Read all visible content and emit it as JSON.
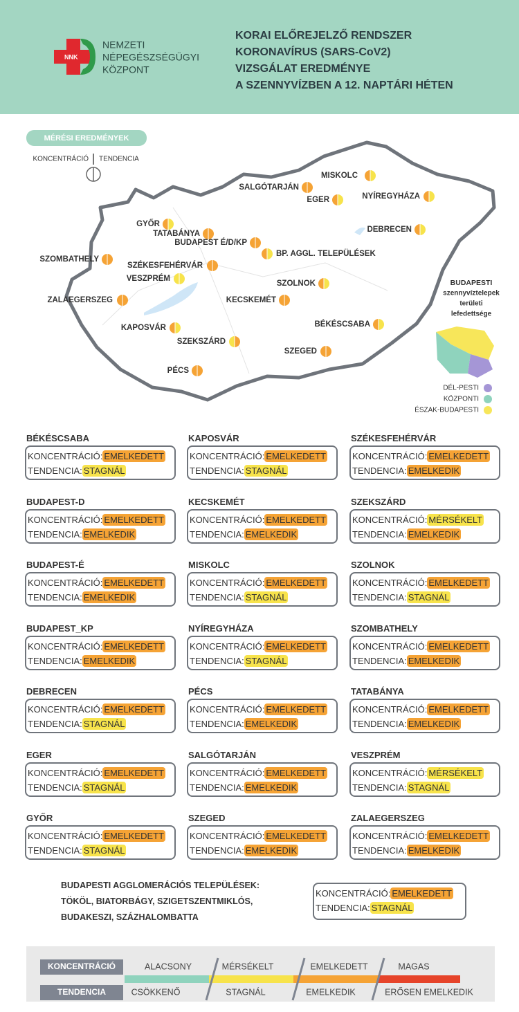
{
  "header": {
    "logo_text": "NNK",
    "org": [
      "NEMZETI",
      "NÉPEGÉSZSÉGÜGYI",
      "KÖZPONT"
    ],
    "title": [
      "KORAI ELŐREJELZŐ RENDSZER",
      "KORONAVÍRUS (SARS-CoV2)",
      "VIZSGÁLAT EREDMÉNYE",
      "A SZENNYVÍZBEN A 12. NAPTÁRI HÉTEN"
    ]
  },
  "map": {
    "badge": "MÉRÉSI EREDMÉNYEK",
    "key_left": "KONCENTRÁCIÓ",
    "key_right": "TENDENCIA",
    "cities": [
      {
        "label": "MISKOLC",
        "concentration_color": "#f5a335",
        "tendency_color": "#f7e34b"
      },
      {
        "label": "SALGÓTARJÁN",
        "concentration_color": "#f5a335",
        "tendency_color": "#f5a335"
      },
      {
        "label": "EGER",
        "concentration_color": "#f5a335",
        "tendency_color": "#f7e34b"
      },
      {
        "label": "NYÍREGYHÁZA",
        "concentration_color": "#f5a335",
        "tendency_color": "#f7e34b"
      },
      {
        "label": "GYŐR",
        "concentration_color": "#f5a335",
        "tendency_color": "#f7e34b"
      },
      {
        "label": "TATABÁNYA",
        "concentration_color": "#f5a335",
        "tendency_color": "#f5a335"
      },
      {
        "label": "BUDAPEST É/D/KP",
        "concentration_color": "#f5a335",
        "tendency_color": "#f5a335"
      },
      {
        "label": "BP. AGGL. TELEPÜLÉSEK",
        "concentration_color": "#f5a335",
        "tendency_color": "#f7e34b"
      },
      {
        "label": "DEBRECEN",
        "concentration_color": "#f5a335",
        "tendency_color": "#f7e34b"
      },
      {
        "label": "SZOMBATHELY",
        "concentration_color": "#f5a335",
        "tendency_color": "#f5a335"
      },
      {
        "label": "SZÉKESFEHÉRVÁR",
        "concentration_color": "#f5a335",
        "tendency_color": "#f5a335"
      },
      {
        "label": "VESZPRÉM",
        "concentration_color": "#f7e34b",
        "tendency_color": "#f7e34b"
      },
      {
        "label": "SZOLNOK",
        "concentration_color": "#f5a335",
        "tendency_color": "#f7e34b"
      },
      {
        "label": "ZALAEGERSZEG",
        "concentration_color": "#f5a335",
        "tendency_color": "#f5a335"
      },
      {
        "label": "KECSKEMÉT",
        "concentration_color": "#f5a335",
        "tendency_color": "#f5a335"
      },
      {
        "label": "KAPOSVÁR",
        "concentration_color": "#f5a335",
        "tendency_color": "#f7e34b"
      },
      {
        "label": "BÉKÉSCSABA",
        "concentration_color": "#f5a335",
        "tendency_color": "#f7e34b"
      },
      {
        "label": "SZEKSZÁRD",
        "concentration_color": "#f7e34b",
        "tendency_color": "#f5a335"
      },
      {
        "label": "SZEGED",
        "concentration_color": "#f5a335",
        "tendency_color": "#f5a335"
      },
      {
        "label": "PÉCS",
        "concentration_color": "#f5a335",
        "tendency_color": "#f5a335"
      }
    ]
  },
  "inset": {
    "title": [
      "BUDAPESTI",
      "szennyvíztelepek",
      "területi",
      "lefedettsége"
    ],
    "items": [
      {
        "label": "DÉL-PESTI",
        "color": "#a596d6"
      },
      {
        "label": "KÖZPONTI",
        "color": "#8fd3bd"
      },
      {
        "label": "ÉSZAK-BUDAPESTI",
        "color": "#f7e65a"
      }
    ]
  },
  "cards": [
    {
      "city": "BÉKÉSCSABA",
      "rows": [
        {
          "label": "KONCENTRÁCIÓ:",
          "value": "EMELKEDETT",
          "color": "#f5a335"
        },
        {
          "label": "TENDENCIA:",
          "value": "STAGNÁL",
          "color": "#f7e34b"
        }
      ]
    },
    {
      "city": "BUDAPEST-D",
      "rows": [
        {
          "label": "KONCENTRÁCIÓ:",
          "value": "EMELKEDETT",
          "color": "#f5a335"
        },
        {
          "label": "TENDENCIA:",
          "value": "EMELKEDIK",
          "color": "#f5a335"
        }
      ]
    },
    {
      "city": "BUDAPEST-É",
      "rows": [
        {
          "label": "KONCENTRÁCIÓ:",
          "value": "EMELKEDETT",
          "color": "#f5a335"
        },
        {
          "label": "TENDENCIA:",
          "value": "EMELKEDIK",
          "color": "#f5a335"
        }
      ]
    },
    {
      "city": "BUDAPEST_KP",
      "rows": [
        {
          "label": "KONCENTRÁCIÓ:",
          "value": "EMELKEDETT",
          "color": "#f5a335"
        },
        {
          "label": "TENDENCIA:",
          "value": "EMELKEDIK",
          "color": "#f5a335"
        }
      ]
    },
    {
      "city": "DEBRECEN",
      "rows": [
        {
          "label": "KONCENTRÁCIÓ:",
          "value": "EMELKEDETT",
          "color": "#f5a335"
        },
        {
          "label": "TENDENCIA:",
          "value": "STAGNÁL",
          "color": "#f7e34b"
        }
      ]
    },
    {
      "city": "EGER",
      "rows": [
        {
          "label": "KONCENTRÁCIÓ:",
          "value": "EMELKEDETT",
          "color": "#f5a335"
        },
        {
          "label": "TENDENCIA:",
          "value": "STAGNÁL",
          "color": "#f7e34b"
        }
      ]
    },
    {
      "city": "GYŐR",
      "rows": [
        {
          "label": "KONCENTRÁCIÓ:",
          "value": "EMELKEDETT",
          "color": "#f5a335"
        },
        {
          "label": "TENDENCIA:",
          "value": "STAGNÁL",
          "color": "#f7e34b"
        }
      ]
    },
    {
      "city": "KAPOSVÁR",
      "rows": [
        {
          "label": "KONCENTRÁCIÓ:",
          "value": "EMELKEDETT",
          "color": "#f5a335"
        },
        {
          "label": "TENDENCIA:",
          "value": "STAGNÁL",
          "color": "#f7e34b"
        }
      ]
    },
    {
      "city": "KECSKEMÉT",
      "rows": [
        {
          "label": "KONCENTRÁCIÓ:",
          "value": "EMELKEDETT",
          "color": "#f5a335"
        },
        {
          "label": "TENDENCIA:",
          "value": "EMELKEDIK",
          "color": "#f5a335"
        }
      ]
    },
    {
      "city": "MISKOLC",
      "rows": [
        {
          "label": "KONCENTRÁCIÓ:",
          "value": "EMELKEDETT",
          "color": "#f5a335"
        },
        {
          "label": "TENDENCIA:",
          "value": "STAGNÁL",
          "color": "#f7e34b"
        }
      ]
    },
    {
      "city": "NYÍREGYHÁZA",
      "rows": [
        {
          "label": "KONCENTRÁCIÓ:",
          "value": "EMELKEDETT",
          "color": "#f5a335"
        },
        {
          "label": "TENDENCIA:",
          "value": "STAGNÁL",
          "color": "#f7e34b"
        }
      ]
    },
    {
      "city": "PÉCS",
      "rows": [
        {
          "label": "KONCENTRÁCIÓ:",
          "value": "EMELKEDETT",
          "color": "#f5a335"
        },
        {
          "label": "TENDENCIA:",
          "value": "EMELKEDIK",
          "color": "#f5a335"
        }
      ]
    },
    {
      "city": "SALGÓTARJÁN",
      "rows": [
        {
          "label": "KONCENTRÁCIÓ:",
          "value": "EMELKEDETT",
          "color": "#f5a335"
        },
        {
          "label": "TENDENCIA:",
          "value": "EMELKEDIK",
          "color": "#f5a335"
        }
      ]
    },
    {
      "city": "SZEGED",
      "rows": [
        {
          "label": "KONCENTRÁCIÓ:",
          "value": "EMELKEDETT",
          "color": "#f5a335"
        },
        {
          "label": "TENDENCIA:",
          "value": "EMELKEDIK",
          "color": "#f5a335"
        }
      ]
    },
    {
      "city": "SZÉKESFEHÉRVÁR",
      "rows": [
        {
          "label": "KONCENTRÁCIÓ:",
          "value": "EMELKEDETT",
          "color": "#f5a335"
        },
        {
          "label": "TENDENCIA:",
          "value": "EMELKEDIK",
          "color": "#f5a335"
        }
      ]
    },
    {
      "city": "SZEKSZÁRD",
      "rows": [
        {
          "label": "KONCENTRÁCIÓ:",
          "value": "MÉRSÉKELT",
          "color": "#f7e34b"
        },
        {
          "label": "TENDENCIA:",
          "value": "EMELKEDIK",
          "color": "#f5a335"
        }
      ]
    },
    {
      "city": "SZOLNOK",
      "rows": [
        {
          "label": "KONCENTRÁCIÓ:",
          "value": "EMELKEDETT",
          "color": "#f5a335"
        },
        {
          "label": "TENDENCIA:",
          "value": "STAGNÁL",
          "color": "#f7e34b"
        }
      ]
    },
    {
      "city": "SZOMBATHELY",
      "rows": [
        {
          "label": "KONCENTRÁCIÓ:",
          "value": "EMELKEDETT",
          "color": "#f5a335"
        },
        {
          "label": "TENDENCIA:",
          "value": "EMELKEDIK",
          "color": "#f5a335"
        }
      ]
    },
    {
      "city": "TATABÁNYA",
      "rows": [
        {
          "label": "KONCENTRÁCIÓ:",
          "value": "EMELKEDETT",
          "color": "#f5a335"
        },
        {
          "label": "TENDENCIA:",
          "value": "EMELKEDIK",
          "color": "#f5a335"
        }
      ]
    },
    {
      "city": "VESZPRÉM",
      "rows": [
        {
          "label": "KONCENTRÁCIÓ:",
          "value": "MÉRSÉKELT",
          "color": "#f7e34b"
        },
        {
          "label": "TENDENCIA:",
          "value": "STAGNÁL",
          "color": "#f7e34b"
        }
      ]
    },
    {
      "city": "ZALAEGERSZEG",
      "rows": [
        {
          "label": "KONCENTRÁCIÓ:",
          "value": "EMELKEDETT",
          "color": "#f5a335"
        },
        {
          "label": "TENDENCIA:",
          "value": "EMELKEDIK",
          "color": "#f5a335"
        }
      ]
    }
  ],
  "agglomeration": {
    "text": [
      "BUDAPESTI AGGLOMERÁCIÓS TELEPÜLÉSEK:",
      "TÖKÖL, BIATORBÁGY, SZIGETSZENTMIKLÓS,",
      "BUDAKESZI, SZÁZHALOMBATTA"
    ],
    "rows": [
      {
        "label": "KONCENTRÁCIÓ:",
        "value": "EMELKEDETT",
        "color": "#f5a335"
      },
      {
        "label": "TENDENCIA:",
        "value": "STAGNÁL",
        "color": "#f7e34b"
      }
    ]
  },
  "legend": {
    "colors": [
      "#8fd3bd",
      "#f7e34b",
      "#f5a335",
      "#e6442a"
    ],
    "rows": [
      {
        "label": "KONCENTRÁCIÓ",
        "items": [
          "ALACSONY",
          "MÉRSÉKELT",
          "EMELKEDETT",
          "MAGAS"
        ]
      },
      {
        "label": "TENDENCIA",
        "items": [
          "CSÖKKENŐ",
          "STAGNÁL",
          "EMELKEDIK",
          "ERŐSEN EMELKEDIK"
        ]
      }
    ]
  }
}
